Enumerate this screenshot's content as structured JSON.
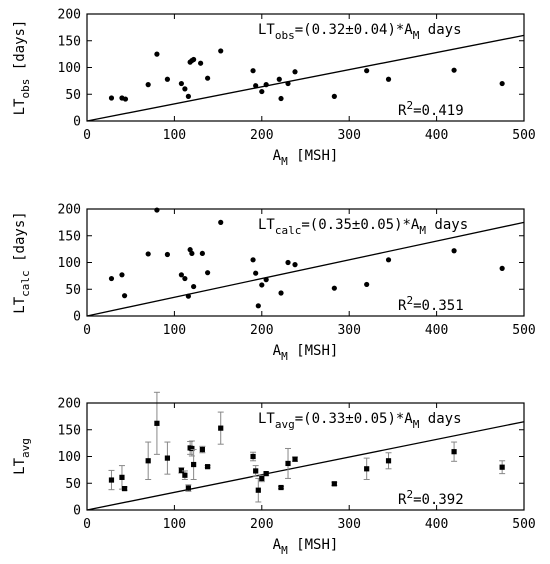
{
  "chart_data": [
    {
      "type": "scatter",
      "xlabel": {
        "main": "A",
        "sub": "M",
        "rest": " [MSH]"
      },
      "ylabel": {
        "main": "LT",
        "sub": "obs",
        "rest": " [days]"
      },
      "xlim": [
        0,
        500
      ],
      "ylim": [
        0,
        200
      ],
      "xticks": [
        0,
        100,
        200,
        300,
        400,
        500
      ],
      "yticks": [
        0,
        50,
        100,
        150,
        200
      ],
      "fit_slope": 0.32,
      "annotation": {
        "pre": "LT",
        "sub": "obs",
        "mid": "=(0.32±0.04)*A",
        "sub2": "M",
        "post": " days"
      },
      "r2": {
        "main": "R",
        "sup": "2",
        "rest": "=0.419"
      },
      "series": [
        {
          "marker": "circle",
          "x": [
            28,
            40,
            44,
            70,
            80,
            92,
            108,
            112,
            116,
            118,
            120,
            122,
            130,
            138,
            153,
            190,
            193,
            200,
            205,
            220,
            222,
            230,
            238,
            283,
            320,
            345,
            420,
            475
          ],
          "y": [
            43,
            43,
            41,
            68,
            125,
            78,
            70,
            60,
            46,
            110,
            113,
            115,
            108,
            80,
            131,
            94,
            66,
            55,
            68,
            78,
            42,
            70,
            92,
            46,
            94,
            78,
            95,
            70
          ]
        }
      ]
    },
    {
      "type": "scatter",
      "xlabel": {
        "main": "A",
        "sub": "M",
        "rest": " [MSH]"
      },
      "ylabel": {
        "main": "LT",
        "sub": "calc",
        "rest": " [days]"
      },
      "xlim": [
        0,
        500
      ],
      "ylim": [
        0,
        200
      ],
      "xticks": [
        0,
        100,
        200,
        300,
        400,
        500
      ],
      "yticks": [
        0,
        50,
        100,
        150,
        200
      ],
      "fit_slope": 0.35,
      "annotation": {
        "pre": "LT",
        "sub": "calc",
        "mid": "=(0.35±0.05)*A",
        "sub2": "M",
        "post": " days"
      },
      "r2": {
        "main": "R",
        "sup": "2",
        "rest": "=0.351"
      },
      "series": [
        {
          "marker": "circle",
          "x": [
            28,
            40,
            43,
            70,
            80,
            92,
            108,
            112,
            116,
            118,
            120,
            122,
            132,
            138,
            153,
            190,
            193,
            196,
            200,
            205,
            222,
            230,
            238,
            283,
            320,
            345,
            420,
            475
          ],
          "y": [
            70,
            77,
            38,
            116,
            198,
            115,
            77,
            70,
            37,
            124,
            117,
            55,
            117,
            81,
            175,
            105,
            80,
            19,
            58,
            68,
            43,
            100,
            96,
            52,
            59,
            105,
            122,
            89
          ]
        }
      ]
    },
    {
      "type": "scatter",
      "xlabel": {
        "main": "A",
        "sub": "M",
        "rest": " [MSH]"
      },
      "ylabel": {
        "main": "LT",
        "sub": "avg",
        "rest": ""
      },
      "xlim": [
        0,
        500
      ],
      "ylim": [
        0,
        200
      ],
      "xticks": [
        0,
        100,
        200,
        300,
        400,
        500
      ],
      "yticks": [
        0,
        50,
        100,
        150,
        200
      ],
      "fit_slope": 0.33,
      "annotation": {
        "pre": "LT",
        "sub": "avg",
        "mid": "=(0.33±0.05)*A",
        "sub2": "M",
        "post": " days"
      },
      "r2": {
        "main": "R",
        "sup": "2",
        "rest": "=0.392"
      },
      "series": [
        {
          "marker": "square",
          "x": [
            28,
            40,
            43,
            70,
            80,
            92,
            108,
            112,
            116,
            118,
            120,
            122,
            132,
            138,
            153,
            190,
            193,
            196,
            200,
            205,
            222,
            230,
            238,
            283,
            320,
            345,
            420,
            475
          ],
          "y": [
            56,
            61,
            40,
            92,
            162,
            97,
            74,
            65,
            41,
            116,
            115,
            85,
            113,
            81,
            153,
            100,
            73,
            37,
            59,
            68,
            42,
            87,
            95,
            49,
            77,
            92,
            109,
            80
          ],
          "err": [
            18,
            22,
            3,
            35,
            58,
            30,
            5,
            8,
            6,
            12,
            14,
            28,
            6,
            2,
            30,
            8,
            10,
            22,
            6,
            3,
            2,
            28,
            4,
            3,
            20,
            15,
            18,
            12
          ]
        }
      ]
    }
  ]
}
